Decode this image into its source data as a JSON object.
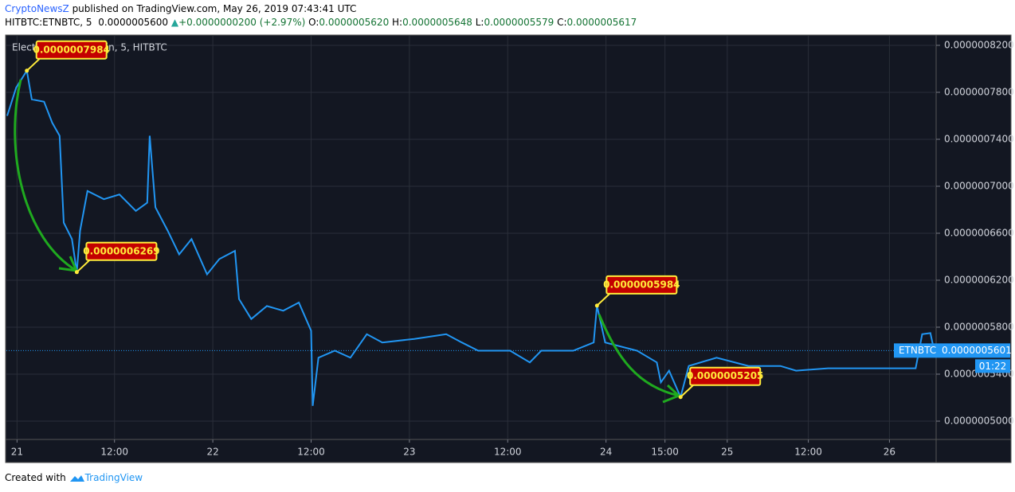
{
  "header": {
    "author": "CryptoNewsZ",
    "published": "published on TradingView.com, May 26, 2019 07:43:41 UTC",
    "symbol": "HITBTC:ETNBTC, 5",
    "last": "0.0000005600",
    "arrow": "▲",
    "change": "+0.0000000200 (+2.97%)",
    "open_label": "O:",
    "open": "0.0000005620",
    "high_label": "H:",
    "high": "0.0000005648",
    "low_label": "L:",
    "low": "0.0000005579",
    "close_label": "C:",
    "close": "0.0000005617"
  },
  "footer": {
    "created": "Created with",
    "brand": "TradingView"
  },
  "chart_data": {
    "type": "line",
    "title": "Electroneum / Bitcoin, 5, HITBTC",
    "x": [
      -1.2,
      -0.1,
      1.2,
      1.8,
      3.3,
      4.3,
      5.2,
      5.7,
      6.7,
      7.3,
      7.7,
      8.6,
      10.6,
      12.5,
      14.5,
      15.9,
      16.2,
      16.9,
      18.4,
      19.8,
      21.3,
      23.2,
      24.7,
      26.6,
      27.1,
      28.6,
      30.5,
      32.5,
      34.4,
      35.9,
      36.1,
      36.8,
      38.8,
      40.7,
      42.7,
      44.6,
      48.5,
      52.4,
      54.3,
      56.3,
      60.2,
      62.6,
      64.0,
      67.9,
      70.4,
      70.8,
      71.8,
      75.7,
      78.1,
      78.6,
      79.6,
      81.0,
      82.0,
      85.4,
      89.3,
      93.2,
      95.1,
      99.0,
      104.9,
      109.7,
      110.5,
      111.5,
      111.9
    ],
    "series": [
      {
        "name": "ETNBTC",
        "color": "#2196f3",
        "values": [
          7.6e-07,
          7.84e-07,
          7.984e-07,
          7.74e-07,
          7.72e-07,
          7.54e-07,
          7.43e-07,
          6.69e-07,
          6.55e-07,
          6.269e-07,
          6.62e-07,
          6.96e-07,
          6.89e-07,
          6.93e-07,
          6.79e-07,
          6.86e-07,
          7.43e-07,
          6.82e-07,
          6.62e-07,
          6.42e-07,
          6.55e-07,
          6.25e-07,
          6.38e-07,
          6.45e-07,
          6.04e-07,
          5.87e-07,
          5.98e-07,
          5.94e-07,
          6.01e-07,
          5.77e-07,
          5.13e-07,
          5.54e-07,
          5.6e-07,
          5.54e-07,
          5.74e-07,
          5.67e-07,
          5.7e-07,
          5.74e-07,
          5.67e-07,
          5.6e-07,
          5.6e-07,
          5.5e-07,
          5.6e-07,
          5.6e-07,
          5.67e-07,
          5.984e-07,
          5.67e-07,
          5.6e-07,
          5.5e-07,
          5.33e-07,
          5.43e-07,
          5.205e-07,
          5.47e-07,
          5.54e-07,
          5.47e-07,
          5.47e-07,
          5.43e-07,
          5.45e-07,
          5.45e-07,
          5.45e-07,
          5.74e-07,
          5.75e-07,
          5.62e-07
        ]
      }
    ],
    "xlim": [
      -1.3,
      112.2
    ],
    "xticks": [
      {
        "value": 0,
        "label": "21"
      },
      {
        "value": 11.9,
        "label": "12:00"
      },
      {
        "value": 23.9,
        "label": "22"
      },
      {
        "value": 35.9,
        "label": "12:00"
      },
      {
        "value": 47.9,
        "label": "23"
      },
      {
        "value": 59.9,
        "label": "12:00"
      },
      {
        "value": 71.9,
        "label": "24"
      },
      {
        "value": 79.1,
        "label": "15:00"
      },
      {
        "value": 86.7,
        "label": "25"
      },
      {
        "value": 96.6,
        "label": "12:00"
      },
      {
        "value": 106.5,
        "label": "26"
      }
    ],
    "ylim": [
      4.844e-07,
      8.281e-07
    ],
    "yticks": [
      {
        "value": 8.2e-07,
        "label": "0.0000008200"
      },
      {
        "value": 7.8e-07,
        "label": "0.0000007800"
      },
      {
        "value": 7.4e-07,
        "label": "0.0000007400"
      },
      {
        "value": 7e-07,
        "label": "0.0000007000"
      },
      {
        "value": 6.6e-07,
        "label": "0.0000006600"
      },
      {
        "value": 6.2e-07,
        "label": "0.0000006200"
      },
      {
        "value": 5.8e-07,
        "label": "0.0000005800"
      },
      {
        "value": 5.4e-07,
        "label": "0.0000005400"
      },
      {
        "value": 5e-07,
        "label": "0.0000005000"
      }
    ],
    "grid": true,
    "annotations": [
      {
        "x": 1.2,
        "value": 7.984e-07,
        "label": "0.0000007984"
      },
      {
        "x": 7.3,
        "value": 6.269e-07,
        "label": "0.0000006269"
      },
      {
        "x": 70.8,
        "value": 5.984e-07,
        "label": "0.0000005984"
      },
      {
        "x": 81.0,
        "value": 5.205e-07,
        "label": "0.0000005205"
      }
    ],
    "last_price": {
      "value": 5.601e-07,
      "label": "0.0000005601"
    },
    "countdown": "01:22"
  }
}
